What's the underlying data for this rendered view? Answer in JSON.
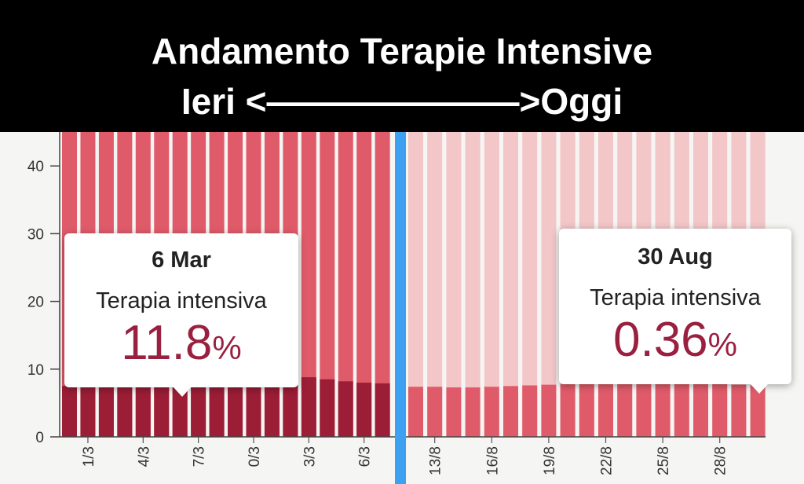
{
  "title": {
    "line1": "Andamento Terapie Intensive",
    "line2": "Ieri <———————>Oggi"
  },
  "colors": {
    "bar_top": "#e05b6a",
    "bar_bottom": "#9b1d36",
    "bar_top_light": "#f3c6c8",
    "bar_bottom_right": "#e05b6a",
    "background": "#f5f5f3",
    "divider": "#3ea0f0",
    "percent_text": "#9a2040"
  },
  "chart_data": [
    {
      "type": "bar",
      "panel": "left",
      "stacked": true,
      "y_ticks": [
        "0",
        "10",
        "20",
        "30",
        "40"
      ],
      "ylim": [
        0,
        45
      ],
      "x_tick_labels": [
        "1/3",
        "4/3",
        "7/3",
        "0/3",
        "3/3",
        "6/3"
      ],
      "bar_count": 18,
      "series": [
        {
          "values": [
            7.5,
            7.6,
            7.7,
            7.8,
            7.8,
            7.9,
            8.0,
            8.0,
            8.1,
            8.2,
            8.3,
            8.5,
            8.6,
            8.8,
            8.5,
            8.2,
            8.0,
            7.9
          ]
        }
      ],
      "tooltip": {
        "date": "6 Mar",
        "series": "Terapia intensiva",
        "value": "11.8",
        "unit": "%"
      }
    },
    {
      "type": "bar",
      "panel": "right",
      "stacked": true,
      "x_tick_labels": [
        "13/8",
        "16/8",
        "19/8",
        "22/8",
        "25/8",
        "28/8"
      ],
      "bar_count": 19,
      "series": [
        {
          "values": [
            7.4,
            7.4,
            7.3,
            7.3,
            7.4,
            7.5,
            7.6,
            7.7,
            7.8,
            7.8,
            7.9,
            7.9,
            7.9,
            7.9,
            7.9,
            7.8,
            7.8,
            7.7,
            7.6
          ]
        }
      ],
      "tooltip": {
        "date": "30 Aug",
        "series": "Terapia intensiva",
        "value": "0.36",
        "unit": "%"
      }
    }
  ]
}
